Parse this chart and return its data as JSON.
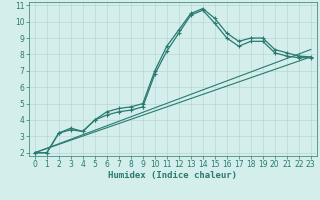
{
  "bg_color": "#d4eeec",
  "line_color": "#2a7a70",
  "grid_color": "#b8d8d5",
  "xlabel": "Humidex (Indice chaleur)",
  "xlim": [
    -0.5,
    23.5
  ],
  "ylim": [
    1.8,
    11.2
  ],
  "xticks": [
    0,
    1,
    2,
    3,
    4,
    5,
    6,
    7,
    8,
    9,
    10,
    11,
    12,
    13,
    14,
    15,
    16,
    17,
    18,
    19,
    20,
    21,
    22,
    23
  ],
  "yticks": [
    2,
    3,
    4,
    5,
    6,
    7,
    8,
    9,
    10,
    11
  ],
  "line1_x": [
    0,
    1,
    2,
    3,
    4,
    5,
    6,
    7,
    8,
    9,
    10,
    11,
    12,
    13,
    14,
    15,
    16,
    17,
    18,
    19,
    20,
    21,
    22,
    23
  ],
  "line1_y": [
    2.0,
    2.0,
    3.2,
    3.5,
    3.3,
    4.0,
    4.5,
    4.7,
    4.8,
    5.0,
    7.0,
    8.5,
    9.5,
    10.5,
    10.8,
    10.2,
    9.3,
    8.8,
    9.0,
    9.0,
    8.3,
    8.1,
    7.9,
    7.85
  ],
  "line2_x": [
    0,
    1,
    2,
    3,
    4,
    5,
    6,
    7,
    8,
    9,
    10,
    11,
    12,
    13,
    14,
    15,
    16,
    17,
    18,
    19,
    20,
    21,
    22,
    23
  ],
  "line2_y": [
    2.0,
    2.0,
    3.2,
    3.4,
    3.3,
    4.0,
    4.3,
    4.5,
    4.6,
    4.8,
    6.8,
    8.2,
    9.3,
    10.4,
    10.7,
    9.9,
    9.0,
    8.5,
    8.8,
    8.8,
    8.1,
    7.9,
    7.8,
    7.8
  ],
  "line3_x": [
    0,
    23
  ],
  "line3_y": [
    2.0,
    8.3
  ],
  "line4_x": [
    0,
    23
  ],
  "line4_y": [
    2.0,
    7.85
  ],
  "tick_fontsize": 5.5,
  "label_fontsize": 6.5
}
